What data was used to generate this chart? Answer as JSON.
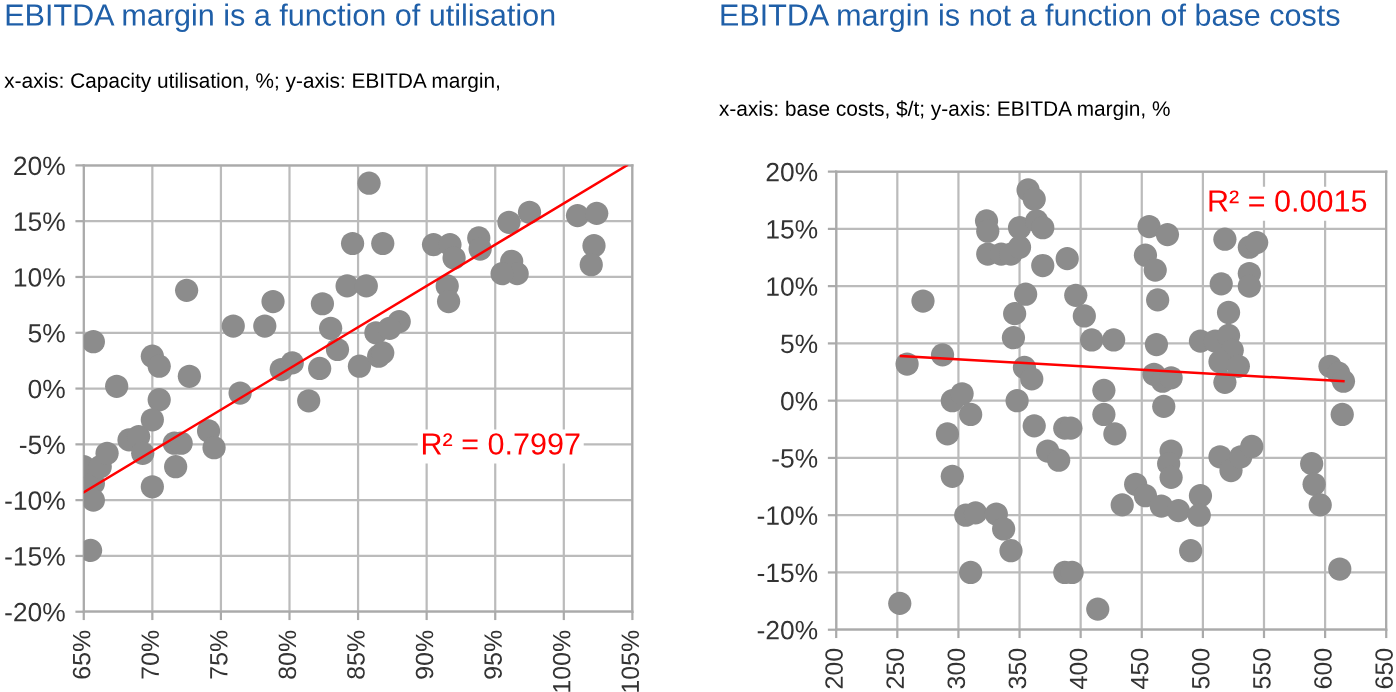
{
  "chart_data": [
    {
      "type": "scatter",
      "title": "EBITDA margin is a function of utilisation",
      "subtitle": "x-axis: Capacity utilisation, %; y-axis: EBITDA margin,",
      "series": [
        {
          "marker": "circle",
          "color": "#8c8c8c",
          "x": [
            65.0,
            65.7,
            65.7,
            65.5,
            65.7,
            66.2,
            66.7,
            67.4,
            68.3,
            69.0,
            69.3,
            70.0,
            70.5,
            70.5,
            70.0,
            70.0,
            71.6,
            71.7,
            72.1,
            72.5,
            72.7,
            74.1,
            74.5,
            75.9,
            76.4,
            78.2,
            78.8,
            79.4,
            80.2,
            81.4,
            82.2,
            82.4,
            83.0,
            83.5,
            84.2,
            84.6,
            85.1,
            85.6,
            85.8,
            86.3,
            86.8,
            86.5,
            88.0,
            87.3,
            86.8,
            90.5,
            91.7,
            92.0,
            91.5,
            91.6,
            93.8,
            93.9,
            96.0,
            96.2,
            96.6,
            95.5,
            97.5,
            101.0,
            102.4,
            102.2,
            102.0
          ],
          "values": [
            -7.0,
            -8.5,
            -10,
            -14.5,
            4.2,
            -7,
            -5.8,
            0.2,
            -4.6,
            -4.3,
            -5.8,
            2.9,
            2.0,
            -1.0,
            -2.8,
            -8.8,
            -4.9,
            -7,
            -4.9,
            8.8,
            1.1,
            -3.8,
            -5.3,
            5.6,
            -0.4,
            5.6,
            7.8,
            1.7,
            2.3,
            -1.1,
            1.8,
            7.6,
            5.4,
            3.5,
            9.2,
            13,
            2.0,
            9.2,
            18.4,
            5,
            13,
            2.9,
            6,
            5.4,
            3.2,
            12.9,
            12.9,
            11.7,
            9.2,
            7.8,
            13.5,
            12.5,
            14.9,
            11.4,
            10.3,
            10.3,
            15.8,
            15.5,
            15.7,
            12.8,
            11.1
          ]
        },
        {
          "type": "line",
          "color": "#ff0000",
          "x": [
            65,
            104.6
          ],
          "values": [
            -9.3,
            20
          ]
        }
      ],
      "annotations": [
        "R² = 0.7997"
      ],
      "xlim": [
        65,
        105
      ],
      "xticks": [
        {
          "value": 65,
          "label": "65%"
        },
        {
          "value": 70,
          "label": "70%"
        },
        {
          "value": 75,
          "label": "75%"
        },
        {
          "value": 80,
          "label": "80%"
        },
        {
          "value": 85,
          "label": "85%"
        },
        {
          "value": 90,
          "label": "90%"
        },
        {
          "value": 95,
          "label": "95%"
        },
        {
          "value": 100,
          "label": "100%"
        },
        {
          "value": 105,
          "label": "105%"
        }
      ],
      "ylim": [
        -20,
        20
      ],
      "yticks": [
        {
          "value": -20,
          "label": "-20%"
        },
        {
          "value": -15,
          "label": "-15%"
        },
        {
          "value": -10,
          "label": "-10%"
        },
        {
          "value": -5,
          "label": "-5%"
        },
        {
          "value": 0,
          "label": "0%"
        },
        {
          "value": 5,
          "label": "5%"
        },
        {
          "value": 10,
          "label": "10%"
        },
        {
          "value": 15,
          "label": "15%"
        },
        {
          "value": 20,
          "label": "20%"
        }
      ],
      "grid": true
    },
    {
      "type": "scatter",
      "title": "EBITDA margin is not a function of base costs",
      "subtitle": "x-axis: base costs, $/t; y-axis: EBITDA margin, %",
      "series": [
        {
          "marker": "circle",
          "color": "#8c8c8c",
          "x": [
            252,
            258,
            271,
            287,
            291,
            295,
            295,
            303,
            310,
            306,
            314,
            310,
            323,
            324,
            324,
            335,
            343,
            350,
            331,
            337,
            343,
            345,
            346,
            348,
            350,
            357,
            362,
            355,
            354,
            360,
            364,
            369,
            362,
            369,
            373,
            382,
            387,
            387,
            389,
            396,
            403,
            409,
            427,
            419,
            419,
            428,
            392,
            393,
            414,
            445,
            453,
            434,
            456,
            453,
            461,
            471,
            463,
            462,
            460,
            467,
            474,
            468,
            474,
            472,
            474,
            466,
            480,
            498,
            497,
            490,
            518,
            515,
            521,
            498,
            510,
            521,
            524,
            514,
            529,
            518,
            514,
            523,
            531,
            540,
            538,
            544,
            538,
            538,
            589,
            591,
            596,
            604,
            611,
            615,
            614,
            612
          ],
          "values": [
            -17.7,
            3.2,
            8.7,
            4,
            -2.9,
            -6.6,
            0,
            0.6,
            -1.2,
            -10,
            -9.8,
            -15,
            15.7,
            14.8,
            12.8,
            12.8,
            12.8,
            13.4,
            -9.9,
            -11.2,
            -13.1,
            5.5,
            7.6,
            0,
            15.1,
            18.4,
            17.6,
            9.3,
            2.9,
            1.9,
            15.7,
            15.1,
            -2.2,
            11.8,
            -4.4,
            -5.2,
            -2.4,
            -15,
            12.4,
            9.2,
            7.4,
            5.3,
            5.3,
            0.9,
            -1.2,
            -2.9,
            -2.4,
            -15,
            -18.2,
            -7.3,
            -8.3,
            -9.1,
            15.2,
            12.7,
            11.4,
            14.5,
            8.8,
            4.9,
            2.3,
            1.7,
            2,
            -0.5,
            -4.4,
            -5.5,
            -6.7,
            -9.2,
            -9.6,
            -8.3,
            -10,
            -13.1,
            14.1,
            10.2,
            7.7,
            5.2,
            5.2,
            5.7,
            4.4,
            3.4,
            3,
            1.6,
            -4.9,
            -6.1,
            -4.9,
            -4,
            13.4,
            13.8,
            11.1,
            10,
            -5.5,
            -7.3,
            -9.1,
            3,
            2.4,
            1.7,
            -1.2,
            -14.7
          ]
        },
        {
          "type": "line",
          "color": "#ff0000",
          "x": [
            253,
            615
          ],
          "values": [
            3.9,
            1.7
          ]
        }
      ],
      "annotations": [
        "R² = 0.0015"
      ],
      "xlim": [
        200,
        650
      ],
      "xticks": [
        200,
        250,
        300,
        350,
        400,
        450,
        500,
        550,
        600,
        650
      ],
      "ylim": [
        -20,
        20
      ],
      "yticks": [
        {
          "value": -20,
          "label": "-20%"
        },
        {
          "value": -15,
          "label": "-15%"
        },
        {
          "value": -10,
          "label": "-10%"
        },
        {
          "value": -5,
          "label": "-5%"
        },
        {
          "value": 0,
          "label": "0%"
        },
        {
          "value": 5,
          "label": "5%"
        },
        {
          "value": 10,
          "label": "10%"
        },
        {
          "value": 15,
          "label": "15%"
        },
        {
          "value": 20,
          "label": "20%"
        }
      ],
      "grid": true
    }
  ]
}
